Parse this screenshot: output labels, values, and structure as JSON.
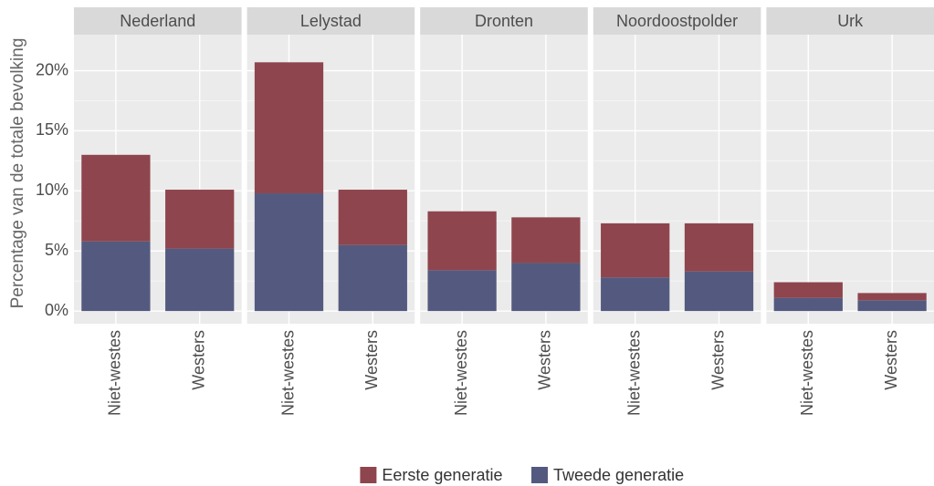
{
  "chart_data": {
    "type": "bar",
    "stacked": true,
    "ylabel": "Percentage van de totale bevolking",
    "facets": [
      "Nederland",
      "Lelystad",
      "Dronten",
      "Noordoostpolder",
      "Urk"
    ],
    "categories": [
      "Niet-westes",
      "Westers"
    ],
    "series": [
      {
        "name": "Eerste generatie",
        "color": "#8f454d",
        "values": [
          [
            7.2,
            4.9
          ],
          [
            10.9,
            4.6
          ],
          [
            4.9,
            3.8
          ],
          [
            4.5,
            4.0
          ],
          [
            1.3,
            0.6
          ]
        ]
      },
      {
        "name": "Tweede generatie",
        "color": "#545a7f",
        "values": [
          [
            5.8,
            5.2
          ],
          [
            9.8,
            5.5
          ],
          [
            3.4,
            4.0
          ],
          [
            2.8,
            3.3
          ],
          [
            1.1,
            0.9
          ]
        ]
      }
    ],
    "ylim": [
      -1.05,
      23.0
    ],
    "yticks": [
      {
        "value": 0,
        "label": "0%"
      },
      {
        "value": 5,
        "label": "5%"
      },
      {
        "value": 10,
        "label": "10%"
      },
      {
        "value": 15,
        "label": "15%"
      },
      {
        "value": 20,
        "label": "20%"
      }
    ],
    "grid": true,
    "legend": "bottom"
  }
}
